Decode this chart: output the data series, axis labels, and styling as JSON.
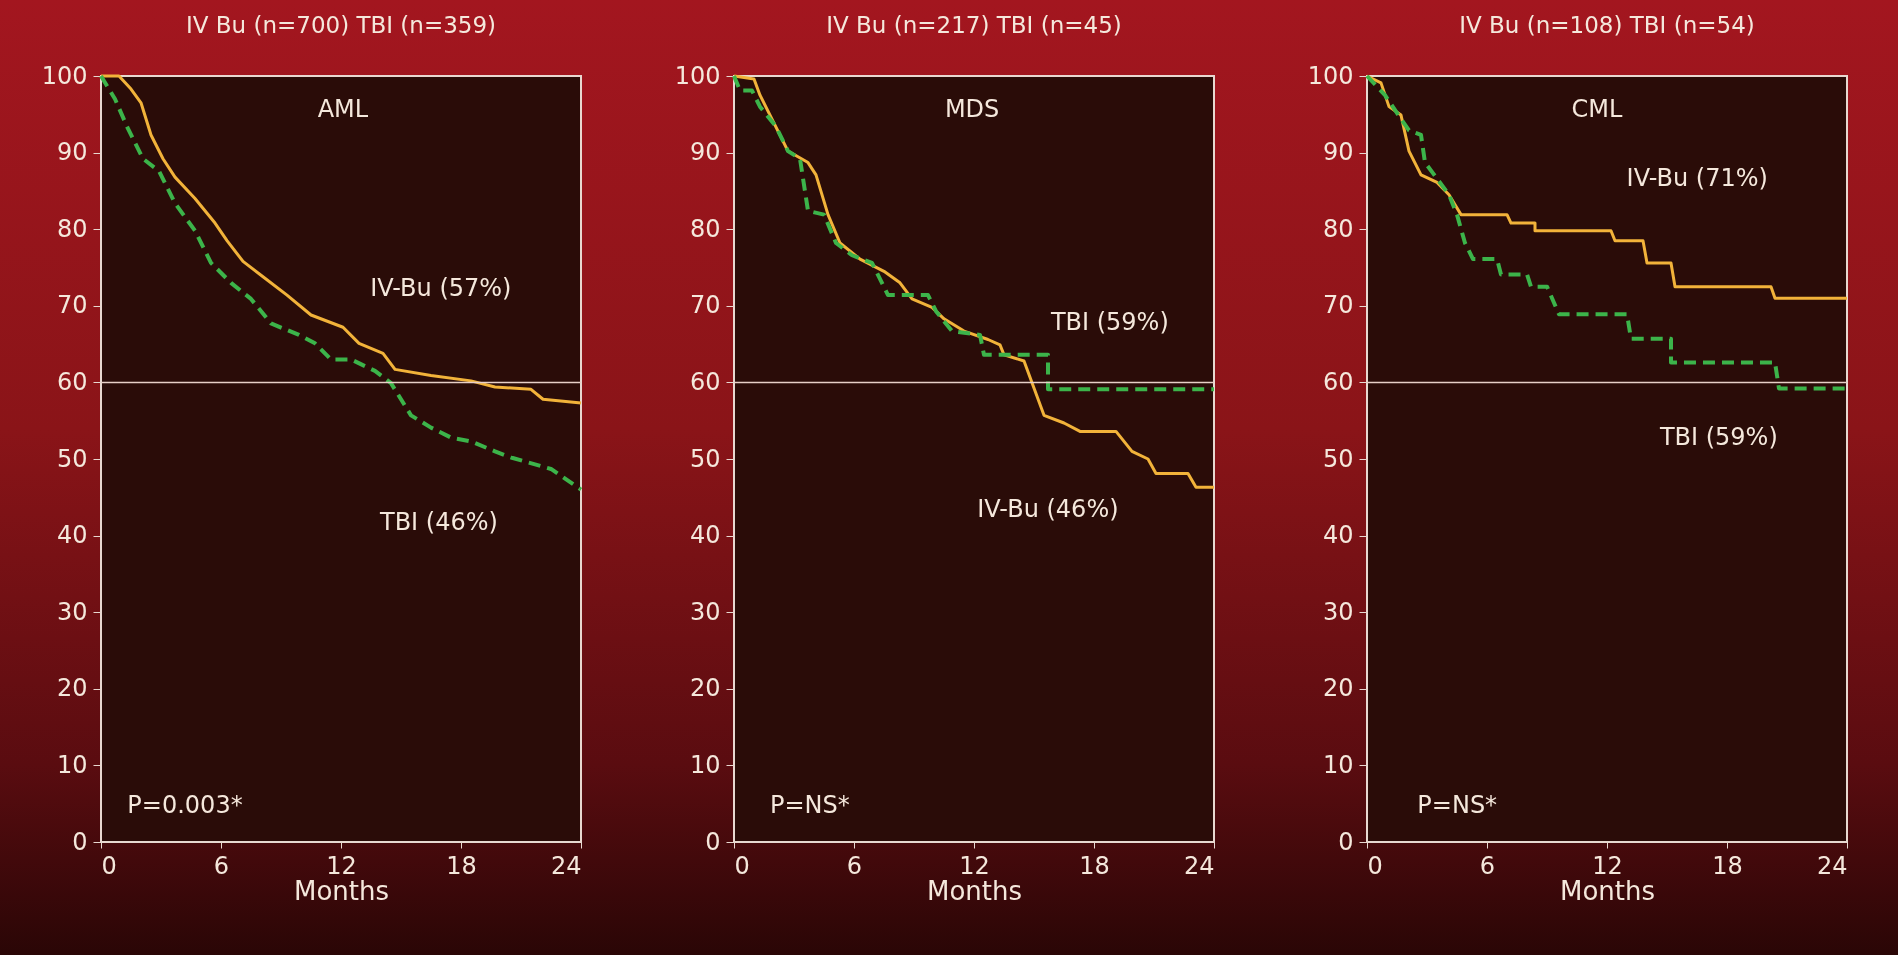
{
  "chart_data": [
    {
      "type": "line",
      "title": "IV Bu (n=700) TBI (n=359)",
      "xlabel": "Months",
      "xlim": [
        0,
        24
      ],
      "xticks": [
        0,
        6,
        12,
        18,
        24
      ],
      "ylim": [
        0,
        100
      ],
      "yticks": [
        0,
        10,
        20,
        30,
        40,
        50,
        60,
        70,
        80,
        90,
        100
      ],
      "grid": false,
      "marker": "none",
      "ref_lines": [
        {
          "axis": "y",
          "value": 60,
          "color": "#e8d0c8"
        }
      ],
      "annotations": [
        "AML",
        "IV-Bu (57%)",
        "TBI (46%)",
        "P=0.003*"
      ],
      "series": [
        {
          "color": "#f2b33a",
          "line_style": "solid",
          "x": [
            0,
            0.9,
            1.5,
            2,
            2.5,
            3.1,
            3.7,
            4.7,
            5.7,
            6.3,
            7.1,
            8.1,
            9.3,
            10.5,
            12.1,
            12.9,
            14.1,
            14.7,
            16.5,
            18.5,
            19.7,
            21.5,
            22.1,
            24
          ],
          "values": [
            100,
            100,
            98.3,
            96.5,
            92.3,
            89.2,
            86.8,
            84,
            80.8,
            78.5,
            75.8,
            73.8,
            71.4,
            68.8,
            67.2,
            65.1,
            63.8,
            61.7,
            60.9,
            60.2,
            59.4,
            59.1,
            57.8,
            57.3
          ]
        },
        {
          "color": "#3cb44a",
          "line_style": "dashed",
          "x": [
            0,
            0.7,
            1.3,
            2.1,
            2.9,
            3.7,
            4.7,
            5.5,
            6.5,
            7.5,
            8.5,
            9.9,
            10.7,
            11.5,
            12.5,
            13.7,
            14.5,
            15.5,
            16.5,
            17.5,
            18.5,
            19.7,
            20.5,
            22.5,
            24
          ],
          "values": [
            100,
            97,
            93.4,
            89.2,
            87.6,
            83.4,
            79.8,
            75.6,
            73,
            70.9,
            67.7,
            66.2,
            65.1,
            63,
            63,
            61.5,
            59.9,
            55.7,
            54.1,
            52.8,
            52.3,
            51,
            50.2,
            48.7,
            46
          ]
        }
      ]
    },
    {
      "type": "line",
      "title": "IV Bu (n=217) TBI (n=45)",
      "xlabel": "Months",
      "xlim": [
        0,
        24
      ],
      "xticks": [
        0,
        6,
        12,
        18,
        24
      ],
      "ylim": [
        0,
        100
      ],
      "yticks": [
        0,
        10,
        20,
        30,
        40,
        50,
        60,
        70,
        80,
        90,
        100
      ],
      "grid": false,
      "marker": "none",
      "ref_lines": [
        {
          "axis": "y",
          "value": 60,
          "color": "#e8d0c8"
        }
      ],
      "annotations": [
        "MDS",
        "TBI (59%)",
        "IV-Bu (46%)",
        "P=NS*"
      ],
      "series": [
        {
          "color": "#f2b33a",
          "line_style": "solid",
          "x": [
            0,
            1,
            1.3,
            2.7,
            3.7,
            4.1,
            4.7,
            5.3,
            6.3,
            7.5,
            8.3,
            8.9,
            9.9,
            10.5,
            11.5,
            12.7,
            13.3,
            13.5,
            14.5,
            15.5,
            16.5,
            17.3,
            19.1,
            19.9,
            20.7,
            21.1,
            22.7,
            23.1,
            24
          ],
          "values": [
            100,
            99.6,
            97.5,
            90.2,
            88.7,
            87.1,
            81.9,
            78.2,
            76.1,
            74.5,
            73,
            70.9,
            69.8,
            68.3,
            66.7,
            65.6,
            64.9,
            63.6,
            62.8,
            55.7,
            54.7,
            53.6,
            53.6,
            51,
            50,
            48.1,
            48.1,
            46.3,
            46.3
          ]
        },
        {
          "color": "#3cb44a",
          "line_style": "dashed",
          "x": [
            0,
            0.3,
            0.9,
            1.3,
            2.1,
            2.7,
            3.3,
            3.7,
            4.5,
            5.1,
            5.9,
            6.9,
            7.7,
            9.7,
            10.1,
            10.9,
            12.3,
            12.5,
            15.7,
            15.7,
            24
          ],
          "values": [
            100,
            98.1,
            98.1,
            96,
            93.4,
            90.2,
            89.2,
            82.4,
            81.9,
            78.2,
            76.6,
            75.6,
            71.4,
            71.4,
            69.3,
            66.7,
            66.2,
            63.6,
            63.6,
            59.1,
            59.1
          ]
        }
      ]
    },
    {
      "type": "line",
      "title": "IV Bu (n=108) TBI (n=54)",
      "xlabel": "Months",
      "xlim": [
        0,
        24
      ],
      "xticks": [
        0,
        6,
        12,
        18,
        24
      ],
      "ylim": [
        0,
        100
      ],
      "yticks": [
        0,
        10,
        20,
        30,
        40,
        50,
        60,
        70,
        80,
        90,
        100
      ],
      "grid": false,
      "marker": "none",
      "ref_lines": [
        {
          "axis": "y",
          "value": 60,
          "color": "#e8d0c8"
        }
      ],
      "annotations": [
        "CML",
        "IV-Bu (71%)",
        "TBI (59%)",
        "P=NS*"
      ],
      "series": [
        {
          "color": "#f2b33a",
          "line_style": "solid",
          "x": [
            0,
            0.7,
            1.1,
            1.7,
            2.1,
            2.7,
            3.5,
            4.1,
            4.7,
            7,
            7.2,
            8.4,
            8.4,
            12.2,
            12.4,
            13.8,
            14,
            15.2,
            15.4,
            20.2,
            20.4,
            24
          ],
          "values": [
            100,
            99.1,
            96,
            94.9,
            90.2,
            87.1,
            86.1,
            84.5,
            81.9,
            81.9,
            80.8,
            80.8,
            79.8,
            79.8,
            78.5,
            78.5,
            75.6,
            75.6,
            72.5,
            72.5,
            71,
            71
          ]
        },
        {
          "color": "#3cb44a",
          "line_style": "dashed",
          "x": [
            0,
            0.9,
            1.7,
            2.1,
            2.7,
            2.9,
            3.5,
            4.1,
            4.5,
            4.9,
            5.3,
            6.5,
            6.7,
            8,
            8.2,
            9,
            9.6,
            13,
            13.2,
            15.2,
            15.2,
            20.4,
            20.6,
            24
          ],
          "values": [
            100,
            97.5,
            94.4,
            92.9,
            92.3,
            88.7,
            86.6,
            84.5,
            81.9,
            78.2,
            76.1,
            76.1,
            74.1,
            74.1,
            72.5,
            72.5,
            68.9,
            68.9,
            65.7,
            65.7,
            62.6,
            62.6,
            59.2,
            59.2
          ]
        }
      ]
    }
  ]
}
